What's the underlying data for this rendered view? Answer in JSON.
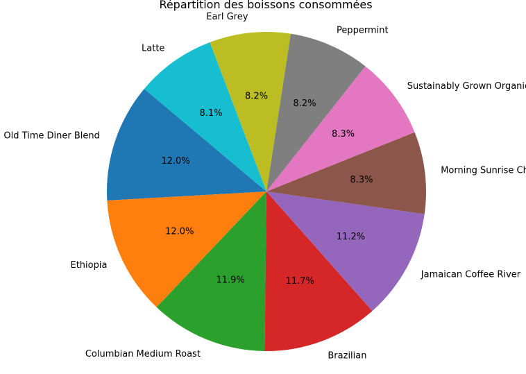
{
  "chart_data": {
    "type": "pie",
    "title": "Répartition des boissons consommées",
    "start_angle_deg": 140,
    "direction": "counterclockwise",
    "slices": [
      {
        "label": "Old Time Diner Blend",
        "value": 12.0,
        "pct_text": "12.0%",
        "color": "#1f77b4"
      },
      {
        "label": "Ethiopia",
        "value": 12.0,
        "pct_text": "12.0%",
        "color": "#ff7f0e"
      },
      {
        "label": "Columbian Medium Roast",
        "value": 11.9,
        "pct_text": "11.9%",
        "color": "#2ca02c"
      },
      {
        "label": "Brazilian",
        "value": 11.7,
        "pct_text": "11.7%",
        "color": "#d62728"
      },
      {
        "label": "Jamaican Coffee River",
        "value": 11.2,
        "pct_text": "11.2%",
        "color": "#9467bd"
      },
      {
        "label": "Morning Sunrise Chai",
        "value": 8.3,
        "pct_text": "8.3%",
        "color": "#8c564b"
      },
      {
        "label": "Sustainably Grown Organic",
        "value": 8.3,
        "pct_text": "8.3%",
        "color": "#e377c2"
      },
      {
        "label": "Peppermint",
        "value": 8.2,
        "pct_text": "8.2%",
        "color": "#7f7f7f"
      },
      {
        "label": "Earl Grey",
        "value": 8.2,
        "pct_text": "8.2%",
        "color": "#bcbd22"
      },
      {
        "label": "Latte",
        "value": 8.1,
        "pct_text": "8.1%",
        "color": "#17becf"
      }
    ]
  }
}
